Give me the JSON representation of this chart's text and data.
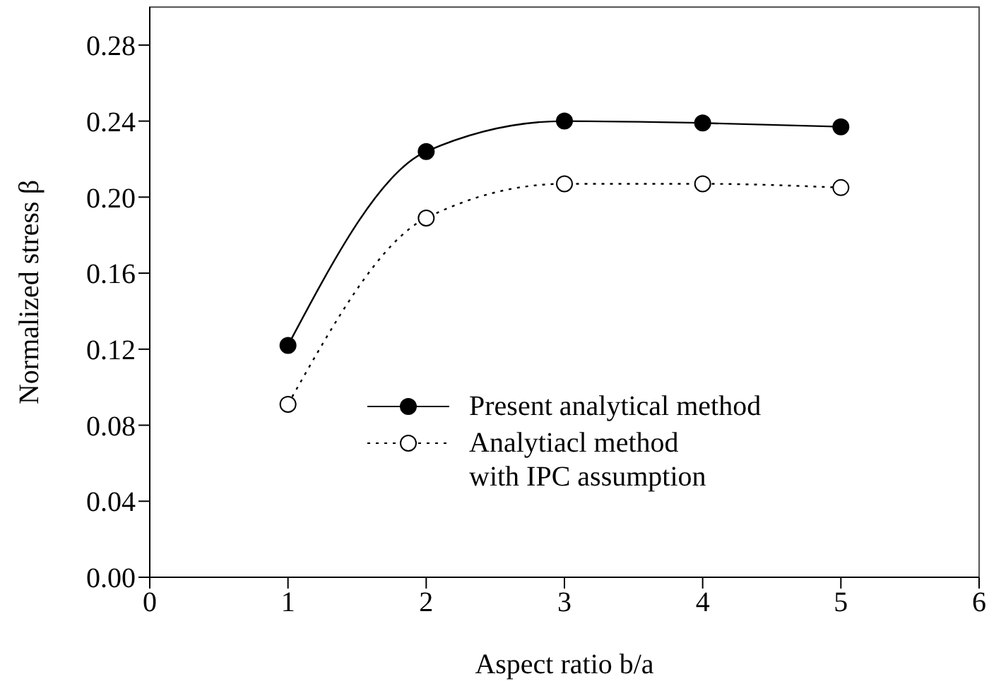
{
  "chart_data": {
    "type": "line",
    "xlabel": "Aspect ratio b/a",
    "ylabel": "Normalized stress β",
    "x": [
      1,
      2,
      3,
      4,
      5
    ],
    "series": [
      {
        "name": "Present analytical method",
        "color": "#000000",
        "values": [
          0.122,
          0.224,
          0.24,
          0.239,
          0.237
        ],
        "line_style": "solid",
        "marker": "circle"
      },
      {
        "name": "Analytiacl method\nwith IPC assumption",
        "color": "#000000",
        "values": [
          0.091,
          0.189,
          0.207,
          0.207,
          0.205
        ],
        "line_style": "dotted",
        "marker": "circle"
      }
    ],
    "xlim": [
      0,
      6
    ],
    "xticks": [
      0,
      1,
      2,
      3,
      4,
      5,
      6
    ],
    "ylim": [
      0,
      0.3
    ],
    "yticks": [
      {
        "value": 0,
        "label": "0.00"
      },
      {
        "value": 0.04,
        "label": "0.04"
      },
      {
        "value": 0.08,
        "label": "0.08"
      },
      {
        "value": 0.12,
        "label": "0.12"
      },
      {
        "value": 0.16,
        "label": "0.16"
      },
      {
        "value": 0.2,
        "label": "0.20"
      },
      {
        "value": 0.24,
        "label": "0.24"
      },
      {
        "value": 0.28,
        "label": "0.28"
      }
    ],
    "grid": false,
    "legend": "center"
  }
}
